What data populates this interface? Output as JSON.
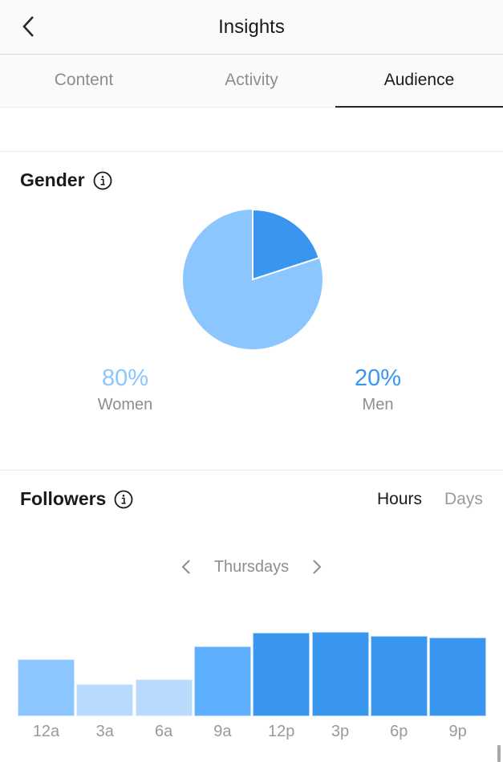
{
  "nav": {
    "title": "Insights",
    "back_icon": "chevron-left-icon"
  },
  "tabs": [
    {
      "label": "Content",
      "active": false
    },
    {
      "label": "Activity",
      "active": false
    },
    {
      "label": "Audience",
      "active": true
    }
  ],
  "gender": {
    "title": "Gender",
    "info_icon": "info-icon",
    "women": {
      "percent": "80%",
      "label": "Women",
      "color": "#8BC6FF"
    },
    "men": {
      "percent": "20%",
      "label": "Men",
      "color": "#3896EF"
    }
  },
  "followers": {
    "title": "Followers",
    "info_icon": "info-icon",
    "toggle": {
      "hours": "Hours",
      "days": "Days",
      "selected": "Hours"
    },
    "day_selector": {
      "prev_icon": "chevron-left-icon",
      "day": "Thursdays",
      "next_icon": "chevron-right-icon"
    }
  },
  "colors": {
    "accent": "#3896EF",
    "light": "#8BC6FF",
    "lighter": "#B8DAFC",
    "mid": "#5FAFFF",
    "muted_text": "#8E8E8E"
  },
  "chart_data": [
    {
      "type": "pie",
      "title": "Gender",
      "categories": [
        "Women",
        "Men"
      ],
      "values": [
        80,
        20
      ],
      "colors": [
        "#8BC6FF",
        "#3896EF"
      ],
      "unit": "%"
    },
    {
      "type": "bar",
      "title": "Followers",
      "subtitle": "Thursdays",
      "categories": [
        "12a",
        "3a",
        "6a",
        "9a",
        "12p",
        "3p",
        "6p",
        "9p"
      ],
      "values": [
        71,
        40,
        46,
        87,
        104,
        105,
        100,
        98
      ],
      "value_note": "relative bar heights (px); no y-axis shown",
      "colors": [
        "#8BC6FF",
        "#B8DAFC",
        "#B8DAFC",
        "#5FAFFF",
        "#3896EF",
        "#3896EF",
        "#3896EF",
        "#3896EF"
      ],
      "xlabel": "",
      "ylabel": "",
      "grid": false,
      "legend": "none"
    }
  ]
}
